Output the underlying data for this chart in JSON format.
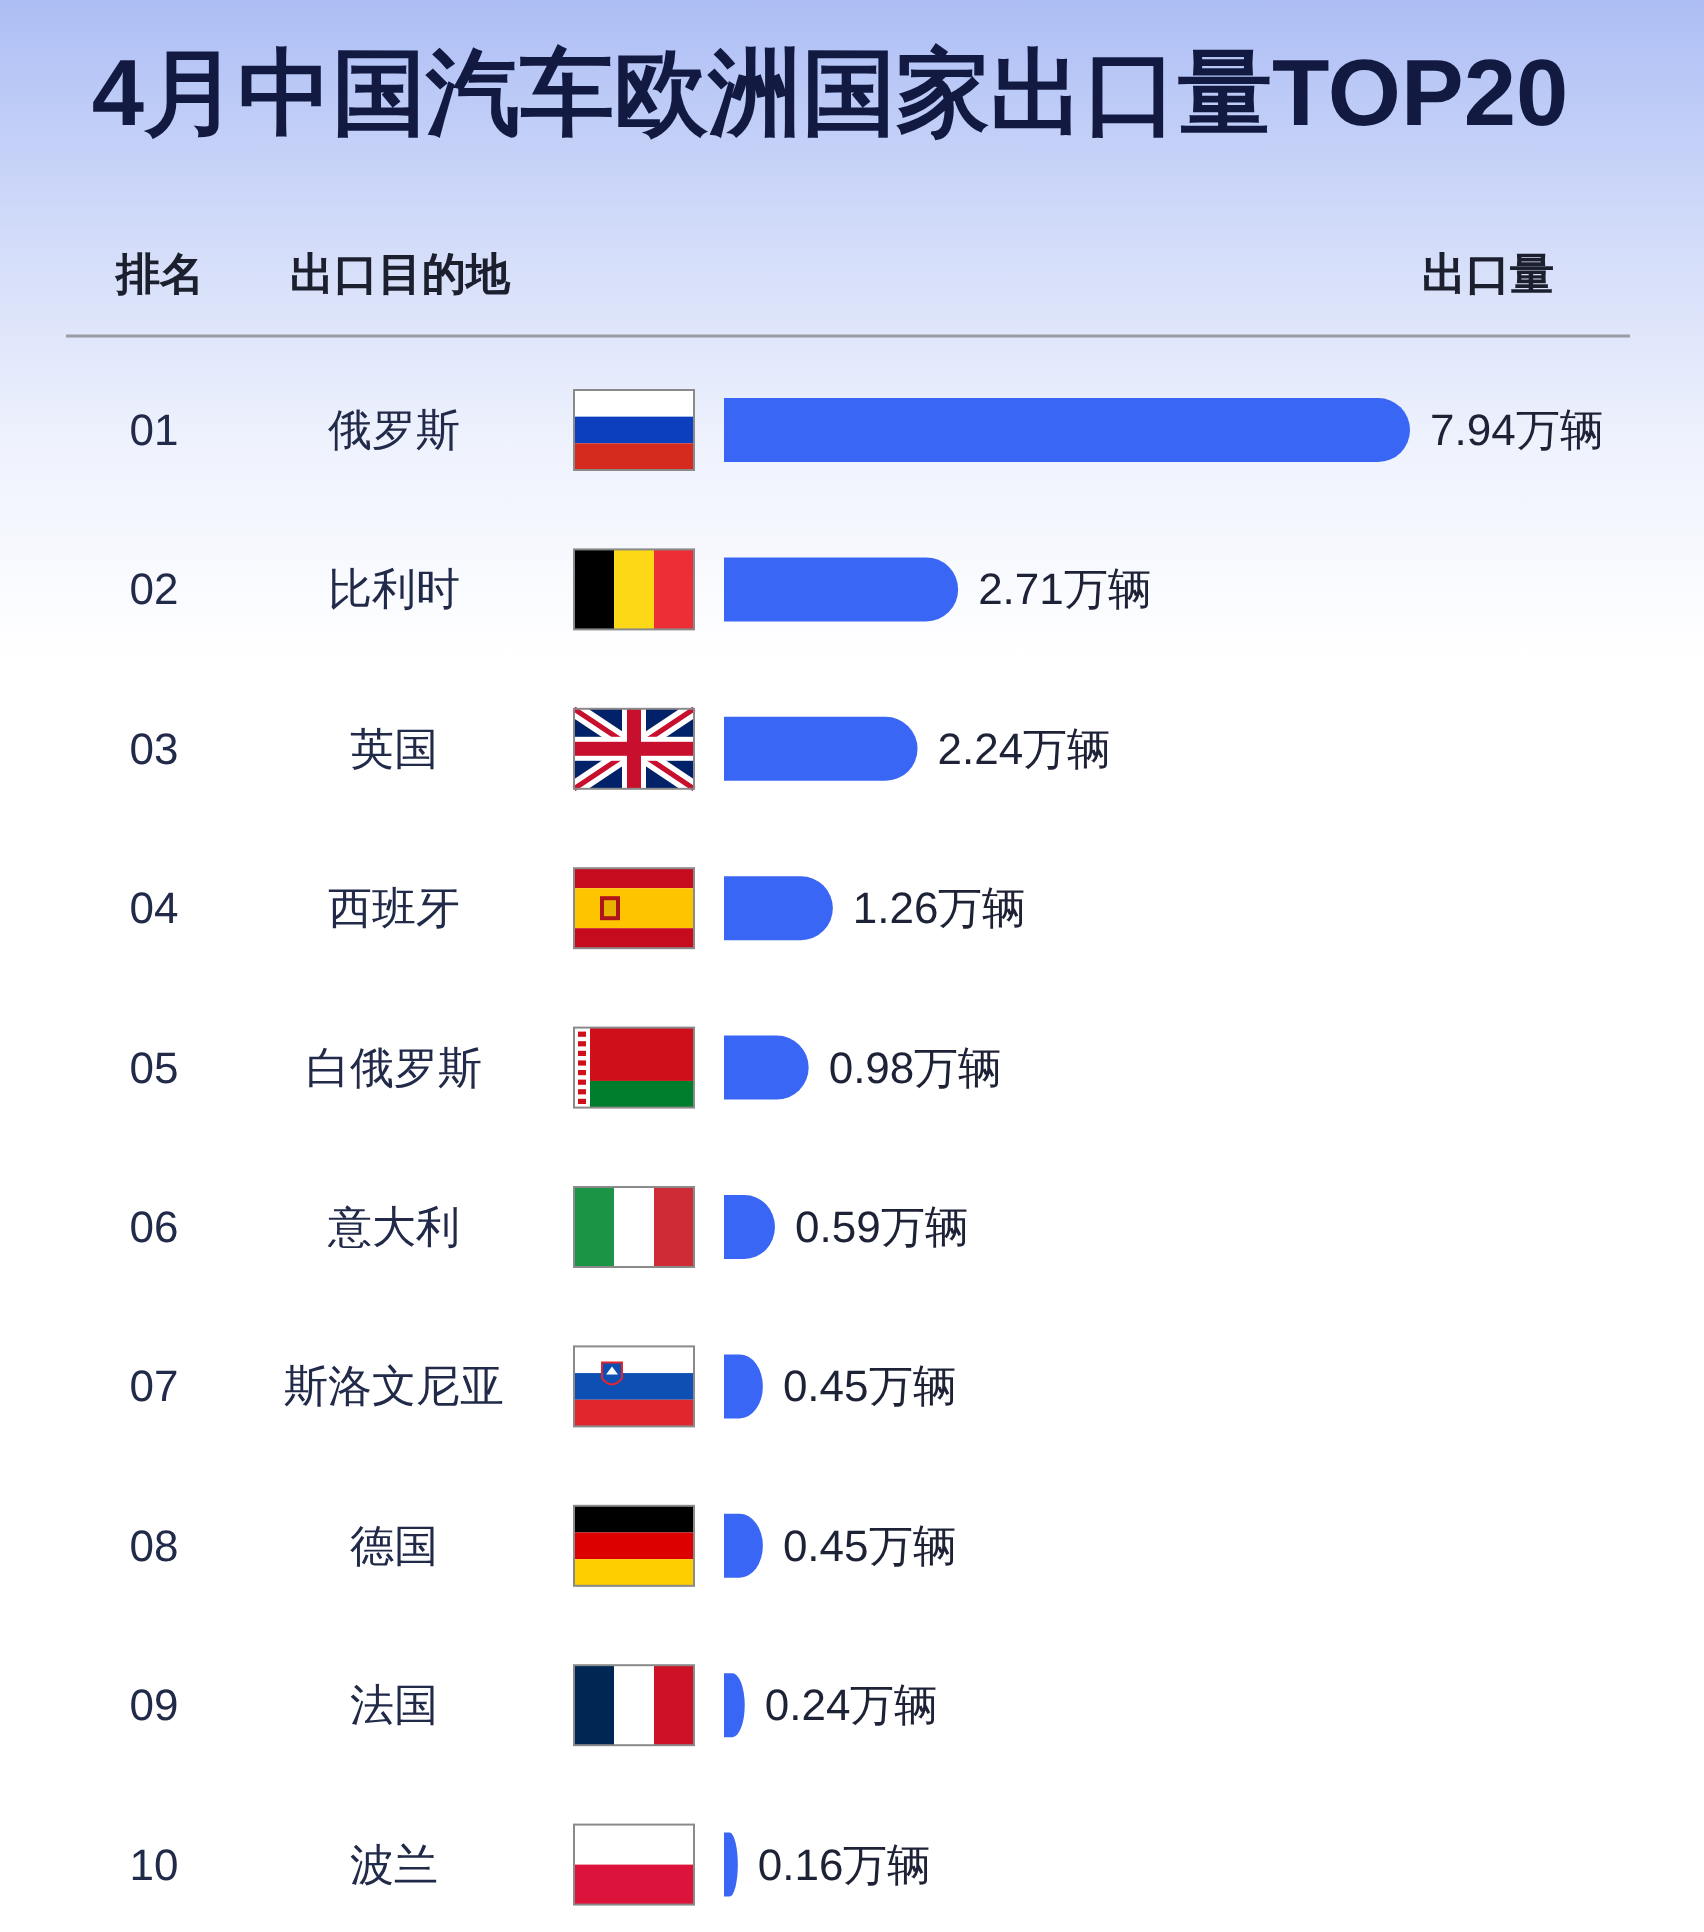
{
  "chart_data": {
    "type": "bar",
    "orientation": "horizontal",
    "title": "4月中国汽车欧洲国家出口量TOP20",
    "ylabel": "出口目的地",
    "xlabel": "出口量",
    "categories": [
      "俄罗斯",
      "比利时",
      "英国",
      "西班牙",
      "白俄罗斯",
      "意大利",
      "斯洛文尼亚",
      "德国",
      "法国",
      "波兰"
    ],
    "values": [
      7.94,
      2.71,
      2.24,
      1.26,
      0.98,
      0.59,
      0.45,
      0.45,
      0.24,
      0.16
    ],
    "value_labels": [
      "7.94万辆",
      "2.71万辆",
      "2.24万辆",
      "1.26万辆",
      "0.98万辆",
      "0.59万辆",
      "0.45万辆",
      "0.45万辆",
      "0.24万辆",
      "0.16万辆"
    ],
    "color": "#3a66f5",
    "annotations": [
      "排名",
      "01",
      "02",
      "03",
      "04",
      "05",
      "06",
      "07",
      "08",
      "09",
      "10"
    ]
  }
}
